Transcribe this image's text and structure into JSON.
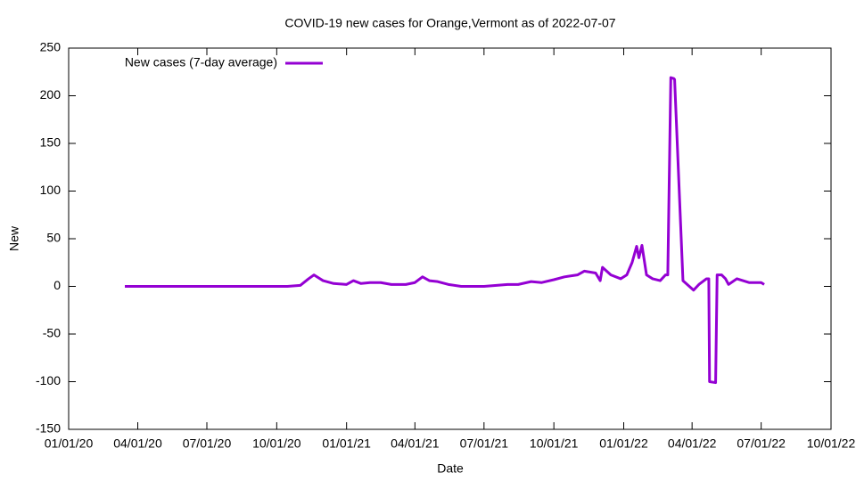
{
  "chart_data": {
    "type": "line",
    "title": "COVID-19 new cases for Orange,Vermont as of 2022-07-07",
    "x_label": "Date",
    "y_label": "New",
    "x": [
      "2020-03-15",
      "2020-04-15",
      "2020-05-15",
      "2020-06-15",
      "2020-07-15",
      "2020-08-15",
      "2020-09-15",
      "2020-10-15",
      "2020-11-01",
      "2020-11-12",
      "2020-11-19",
      "2020-12-01",
      "2020-12-15",
      "2021-01-01",
      "2021-01-10",
      "2021-01-20",
      "2021-02-01",
      "2021-02-15",
      "2021-03-01",
      "2021-03-20",
      "2021-04-01",
      "2021-04-11",
      "2021-04-20",
      "2021-05-01",
      "2021-05-15",
      "2021-06-01",
      "2021-07-01",
      "2021-08-01",
      "2021-08-15",
      "2021-09-01",
      "2021-09-15",
      "2021-10-01",
      "2021-10-15",
      "2021-11-01",
      "2021-11-10",
      "2021-11-25",
      "2021-12-01",
      "2021-12-04",
      "2021-12-15",
      "2021-12-28",
      "2022-01-05",
      "2022-01-12",
      "2022-01-18",
      "2022-01-21",
      "2022-01-25",
      "2022-01-31",
      "2022-02-08",
      "2022-02-18",
      "2022-02-25",
      "2022-02-28",
      "2022-03-04",
      "2022-03-08",
      "2022-03-09",
      "2022-03-20",
      "2022-04-03",
      "2022-04-10",
      "2022-04-20",
      "2022-04-23",
      "2022-04-24",
      "2022-05-02",
      "2022-05-04",
      "2022-05-10",
      "2022-05-15",
      "2022-05-19",
      "2022-05-30",
      "2022-06-15",
      "2022-07-01",
      "2022-07-05"
    ],
    "series": [
      {
        "name": "New cases (7-day average)",
        "color": "#9400d3",
        "values": [
          0,
          0,
          0,
          0,
          0,
          0,
          0,
          0,
          1,
          8,
          12,
          6,
          3,
          2,
          6,
          3,
          4,
          4,
          2,
          2,
          4,
          10,
          6,
          5,
          2,
          0,
          0,
          2,
          2,
          5,
          4,
          7,
          10,
          12,
          16,
          14,
          6,
          20,
          12,
          8,
          12,
          25,
          42,
          30,
          43,
          12,
          8,
          6,
          12,
          12,
          219,
          218,
          217,
          6,
          -4,
          2,
          8,
          8,
          -100,
          -101,
          12,
          12,
          8,
          2,
          8,
          4,
          4,
          2
        ]
      }
    ],
    "xlim": [
      "2020-01-01",
      "2022-10-01"
    ],
    "xticks": [
      {
        "value": "2020-01-01",
        "label": "01/01/20"
      },
      {
        "value": "2020-04-01",
        "label": "04/01/20"
      },
      {
        "value": "2020-07-01",
        "label": "07/01/20"
      },
      {
        "value": "2020-10-01",
        "label": "10/01/20"
      },
      {
        "value": "2021-01-01",
        "label": "01/01/21"
      },
      {
        "value": "2021-04-01",
        "label": "04/01/21"
      },
      {
        "value": "2021-07-01",
        "label": "07/01/21"
      },
      {
        "value": "2021-10-01",
        "label": "10/01/21"
      },
      {
        "value": "2022-01-01",
        "label": "01/01/22"
      },
      {
        "value": "2022-04-01",
        "label": "04/01/22"
      },
      {
        "value": "2022-07-01",
        "label": "07/01/22"
      },
      {
        "value": "2022-10-01",
        "label": "10/01/22"
      }
    ],
    "ylim": [
      -150,
      250
    ],
    "yticks": [
      -150,
      -100,
      -50,
      0,
      50,
      100,
      150,
      200,
      250
    ],
    "legend": "top-left"
  }
}
